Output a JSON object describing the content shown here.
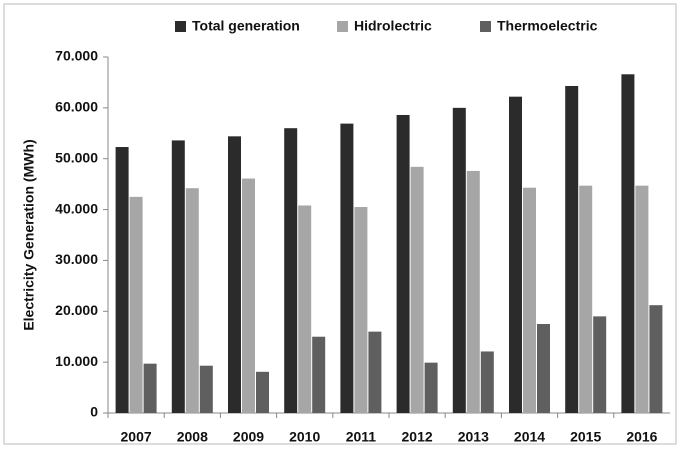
{
  "chart_data": {
    "type": "bar",
    "y_label": "Electricity Generation (MWh)",
    "categories": [
      "2007",
      "2008",
      "2009",
      "2010",
      "2011",
      "2012",
      "2013",
      "2014",
      "2015",
      "2016"
    ],
    "series": [
      {
        "name": "Total generation",
        "color": "#2b2b2b",
        "values": [
          52300,
          53600,
          54400,
          56000,
          56900,
          58600,
          60000,
          62200,
          64300,
          66600
        ]
      },
      {
        "name": "Hidrolectric",
        "color": "#a6a6a6",
        "values": [
          42500,
          44200,
          46100,
          40800,
          40500,
          48400,
          47600,
          44300,
          44700,
          44700
        ]
      },
      {
        "name": "Thermoelectric",
        "color": "#5f5f5f",
        "values": [
          9700,
          9300,
          8100,
          15000,
          16000,
          9900,
          12100,
          17500,
          19000,
          21200
        ]
      }
    ],
    "ylim": [
      0,
      70000
    ],
    "yticks": [
      0,
      {
        "value": 10000,
        "label": "10.000"
      },
      {
        "value": 20000,
        "label": "20.000"
      },
      {
        "value": 30000,
        "label": "30.000"
      },
      {
        "value": 40000,
        "label": "40.000"
      },
      {
        "value": 50000,
        "label": "50.000"
      },
      {
        "value": 60000,
        "label": "60.000"
      },
      {
        "value": 70000,
        "label": "70.000"
      }
    ],
    "grid": false,
    "legend": "top"
  }
}
